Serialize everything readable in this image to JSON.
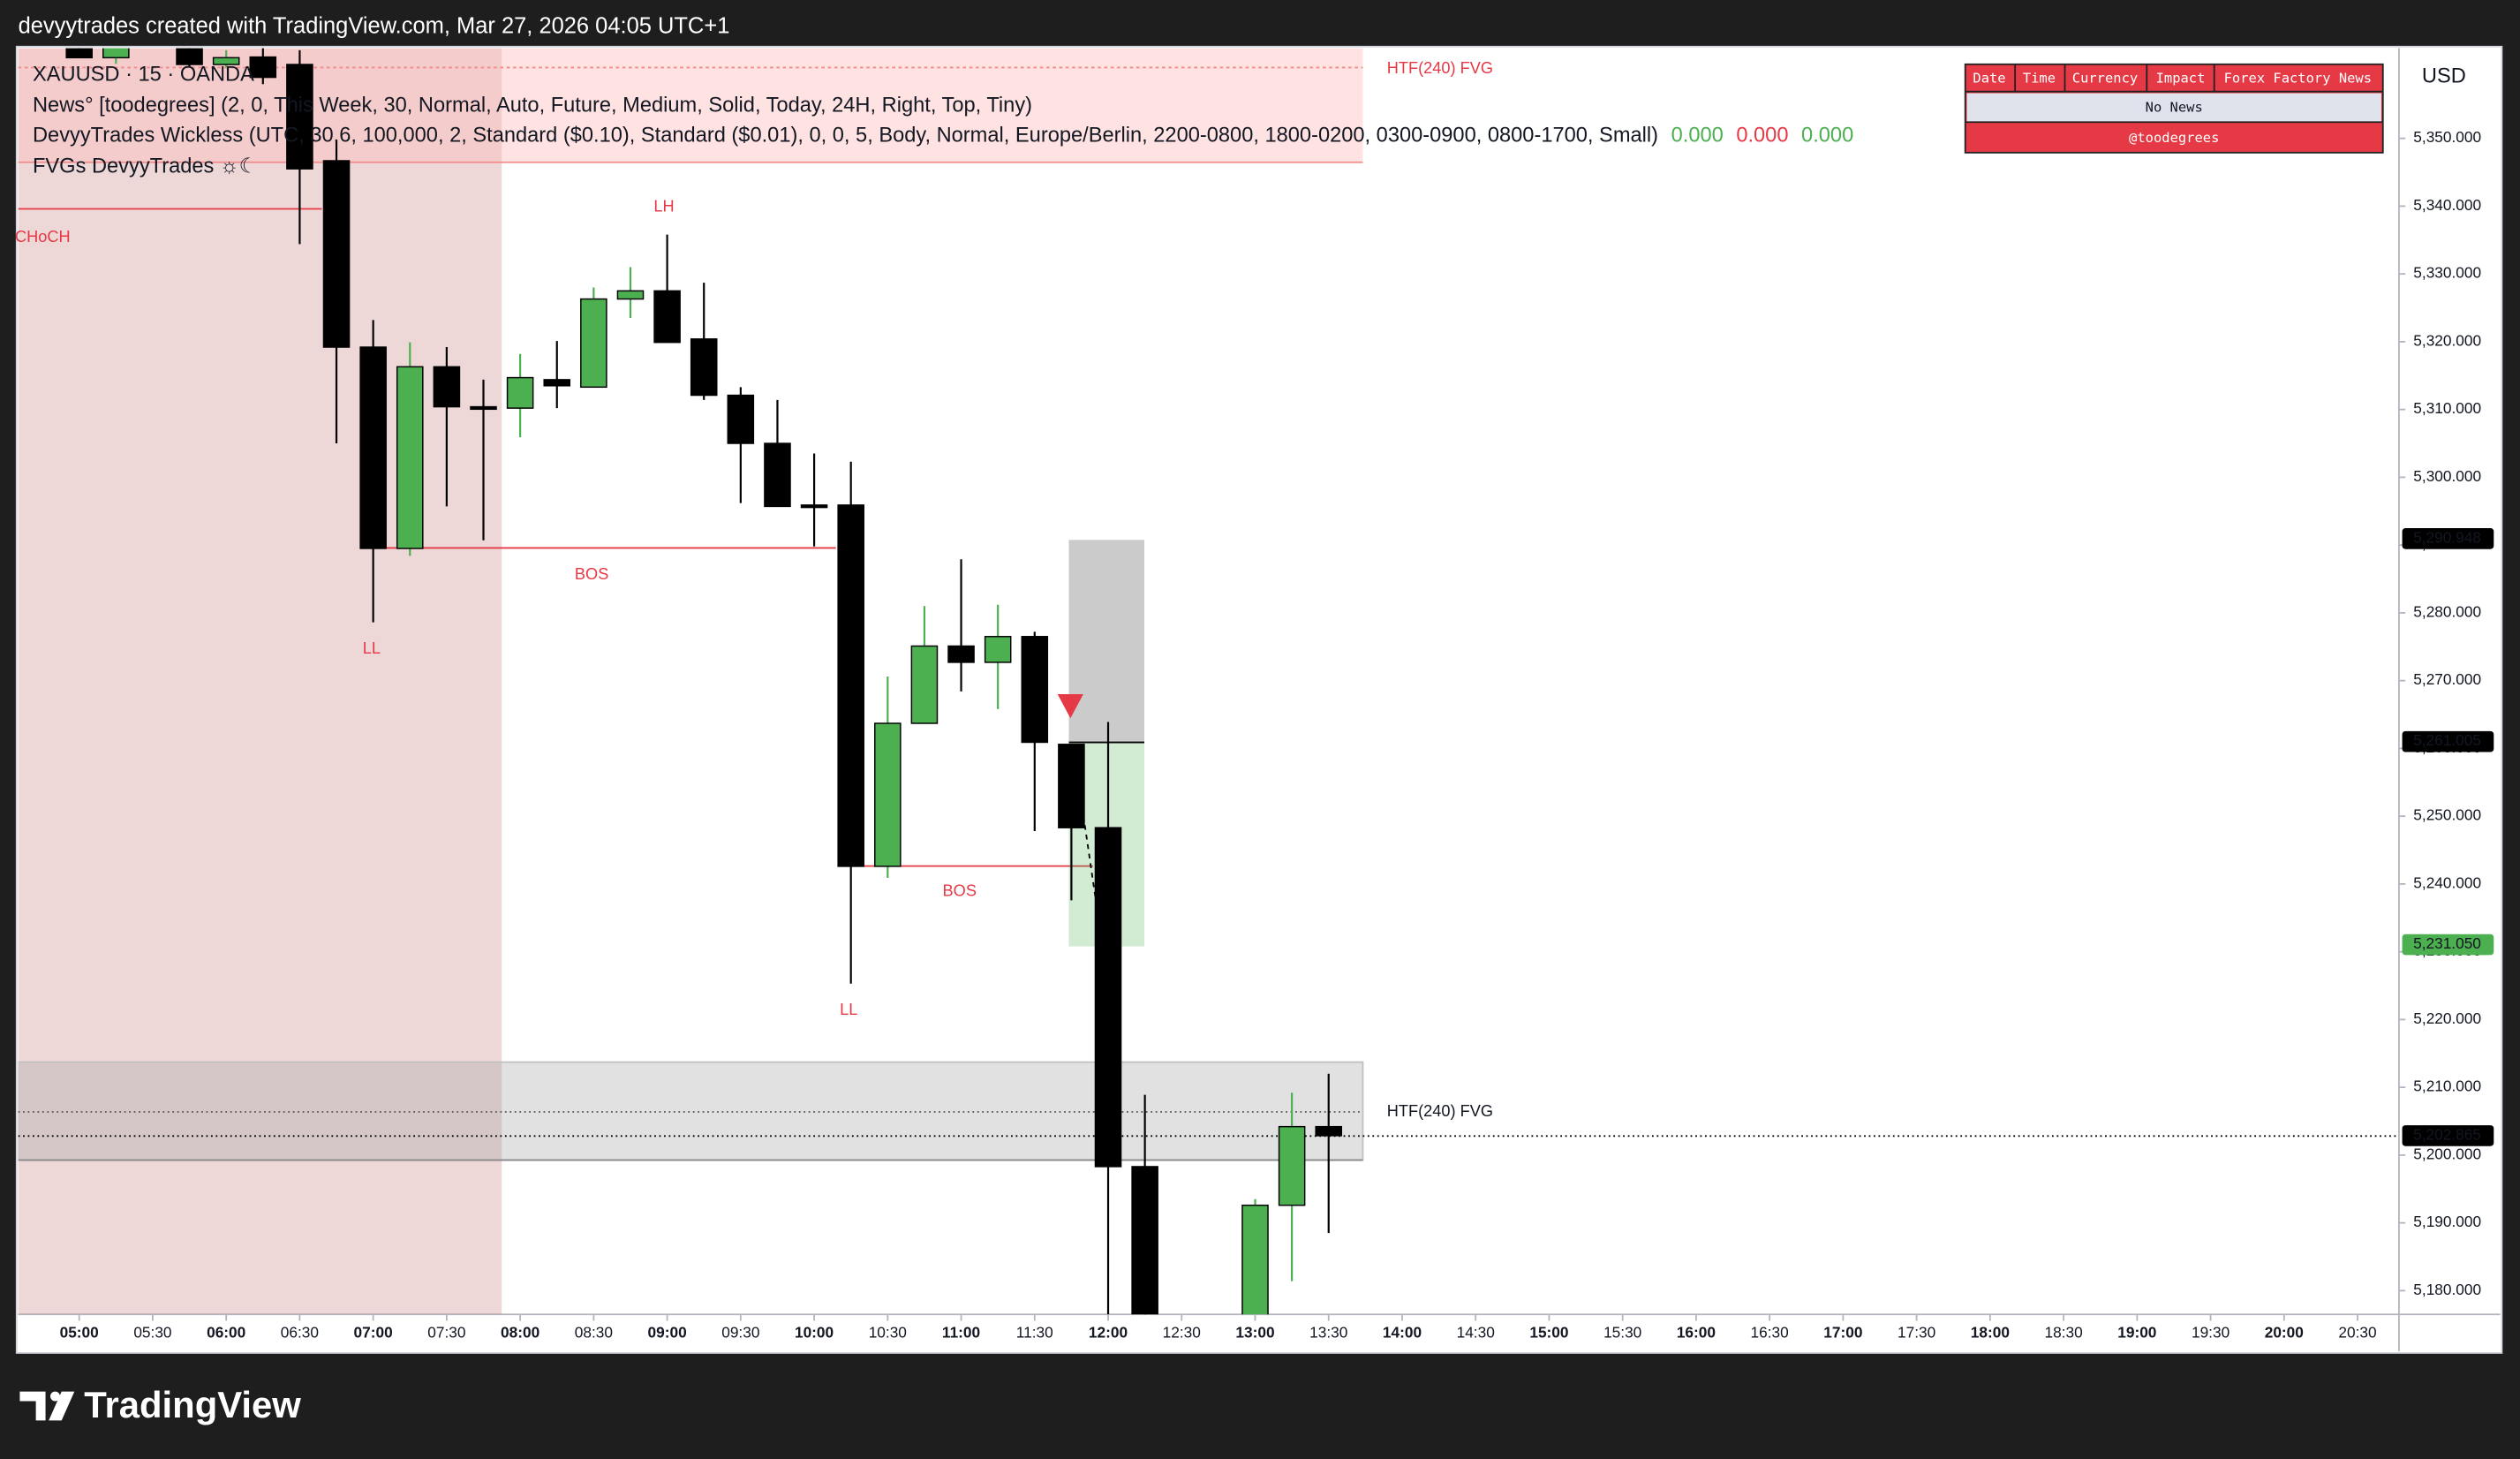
{
  "header": {
    "caption": "devyytrades created with TradingView.com, Mar 27, 2026 04:05 UTC+1"
  },
  "legend": {
    "symbol": "XAUUSD · 15 · OANDA",
    "news": "News° [toodegrees] (2, 0, This Week, 30, Normal, Auto, Future, Medium, Solid, Today, 24H, Right, Top, Tiny)",
    "wickless": "DevyyTrades Wickless (UTC, 30.6, 100,000, 2, Standard ($0.10), Standard ($0.01), 0, 0, 5, Body, Normal, Europe/Berlin, 2200-0800, 1800-0200, 0300-0900, 0800-1700, Small)",
    "wickless_values": [
      "0.000",
      "0.000",
      "0.000"
    ],
    "fvgs": "FVGs DevyyTrades ☼☾"
  },
  "annotations": [
    "HTF(240) FVG",
    "HTF(240) FVG",
    "CHoCH",
    "LH",
    "LL",
    "LL",
    "BOS",
    "BOS"
  ],
  "news_table": {
    "headers": [
      "Date",
      "Time",
      "Currency",
      "Impact",
      "Forex Factory News"
    ],
    "row": "No News",
    "footer": "@toodegrees"
  },
  "currency": "USD",
  "footer": {
    "brand": "TradingView"
  },
  "chart_data": {
    "type": "candlestick",
    "up_color": "#4caf50",
    "down_color": "#000000",
    "grid": false,
    "x": [
      300,
      315,
      345,
      360,
      375,
      390,
      405,
      420,
      435,
      450,
      465,
      480,
      495,
      510,
      525,
      540,
      555,
      570,
      585,
      600,
      615,
      630,
      645,
      660,
      675,
      690,
      705,
      720,
      735,
      780,
      795,
      810
    ],
    "open": [
      5365,
      5361.9,
      5365,
      5360.9,
      5362,
      5360.9,
      5346.7,
      5319.2,
      5289.5,
      5316.3,
      5310.4,
      5310.2,
      5314.4,
      5313.3,
      5326.3,
      5327.5,
      5320.4,
      5312.1,
      5305.0,
      5295.9,
      5295.9,
      5242.6,
      5263.7,
      5275.1,
      5272.7,
      5276.5,
      5260.6,
      5248.3,
      5198.3,
      5170,
      5192.6,
      5204.2
    ],
    "high": [
      5367,
      5366,
      5367,
      5363,
      5365,
      5363,
      5349.8,
      5323.2,
      5319.9,
      5319.2,
      5314.4,
      5318.2,
      5320.1,
      5328.0,
      5331.0,
      5335.8,
      5328.7,
      5313.3,
      5311.4,
      5303.5,
      5302.3,
      5270.6,
      5281.0,
      5287.9,
      5281.2,
      5277.2,
      5260.6,
      5263.9,
      5208.9,
      5193.5,
      5209.2,
      5212.0
    ],
    "low": [
      5361.9,
      5361,
      5360.5,
      5360.5,
      5358,
      5334.4,
      5305.0,
      5278.6,
      5288.4,
      5295.7,
      5290.7,
      5305.9,
      5310.2,
      5313.3,
      5323.5,
      5319.9,
      5311.4,
      5296.2,
      5295.7,
      5289.8,
      5225.3,
      5240.9,
      5263.7,
      5268.4,
      5265.8,
      5247.8,
      5237.6,
      5168,
      5165,
      5168,
      5181.4,
      5188.5
    ],
    "close": [
      5361.9,
      5364,
      5360.9,
      5361.9,
      5359.0,
      5345.5,
      5319.2,
      5289.5,
      5316.3,
      5310.4,
      5310.2,
      5314.7,
      5313.5,
      5326.3,
      5327.5,
      5319.9,
      5312.1,
      5305.0,
      5295.7,
      5295.7,
      5242.6,
      5263.7,
      5275.1,
      5272.7,
      5276.5,
      5260.9,
      5248.3,
      5198.3,
      5170,
      5192.6,
      5204.2,
      5202.865
    ],
    "xlim": [
      275.1,
      1246.9
    ],
    "ylim": [
      5176.5,
      5363.3
    ],
    "xticks": [
      {
        "value": 300,
        "label": "05:00"
      },
      {
        "value": 330,
        "label": "05:30"
      },
      {
        "value": 360,
        "label": "06:00"
      },
      {
        "value": 390,
        "label": "06:30"
      },
      {
        "value": 420,
        "label": "07:00"
      },
      {
        "value": 450,
        "label": "07:30"
      },
      {
        "value": 480,
        "label": "08:00"
      },
      {
        "value": 510,
        "label": "08:30"
      },
      {
        "value": 540,
        "label": "09:00"
      },
      {
        "value": 570,
        "label": "09:30"
      },
      {
        "value": 600,
        "label": "10:00"
      },
      {
        "value": 630,
        "label": "10:30"
      },
      {
        "value": 660,
        "label": "11:00"
      },
      {
        "value": 690,
        "label": "11:30"
      },
      {
        "value": 720,
        "label": "12:00"
      },
      {
        "value": 750,
        "label": "12:30"
      },
      {
        "value": 780,
        "label": "13:00"
      },
      {
        "value": 810,
        "label": "13:30"
      },
      {
        "value": 840,
        "label": "14:00"
      },
      {
        "value": 870,
        "label": "14:30"
      },
      {
        "value": 900,
        "label": "15:00"
      },
      {
        "value": 930,
        "label": "15:30"
      },
      {
        "value": 960,
        "label": "16:00"
      },
      {
        "value": 990,
        "label": "16:30"
      },
      {
        "value": 1020,
        "label": "17:00"
      },
      {
        "value": 1050,
        "label": "17:30"
      },
      {
        "value": 1080,
        "label": "18:00"
      },
      {
        "value": 1110,
        "label": "18:30"
      },
      {
        "value": 1140,
        "label": "19:00"
      },
      {
        "value": 1170,
        "label": "19:30"
      },
      {
        "value": 1200,
        "label": "20:00"
      },
      {
        "value": 1230,
        "label": "20:30"
      }
    ],
    "yticks": [
      {
        "value": 5180,
        "label": "5,180.000"
      },
      {
        "value": 5190,
        "label": "5,190.000"
      },
      {
        "value": 5200,
        "label": "5,200.000"
      },
      {
        "value": 5210,
        "label": "5,210.000"
      },
      {
        "value": 5220,
        "label": "5,220.000"
      },
      {
        "value": 5230,
        "label": "5,230.000"
      },
      {
        "value": 5240,
        "label": "5,240.000"
      },
      {
        "value": 5250,
        "label": "5,250.000"
      },
      {
        "value": 5260,
        "label": "5,260.000"
      },
      {
        "value": 5270,
        "label": "5,270.000"
      },
      {
        "value": 5280,
        "label": "5,280.000"
      },
      {
        "value": 5290,
        "label": "5,290.000"
      },
      {
        "value": 5300,
        "label": "5,300.000"
      },
      {
        "value": 5310,
        "label": "5,310.000"
      },
      {
        "value": 5320,
        "label": "5,320.000"
      },
      {
        "value": 5330,
        "label": "5,330.000"
      },
      {
        "value": 5340,
        "label": "5,340.000"
      },
      {
        "value": 5350,
        "label": "5,350.000"
      }
    ],
    "price_labels": [
      {
        "value": 5290.948,
        "label": "5,290.948",
        "color": "#000000"
      },
      {
        "value": 5261.005,
        "label": "5,261.005",
        "color": "#000000"
      },
      {
        "value": 5231.05,
        "label": "5,231.050",
        "color": "#4caf50"
      },
      {
        "value": 5202.865,
        "label": "5,202.865",
        "color": "#000000"
      }
    ]
  }
}
